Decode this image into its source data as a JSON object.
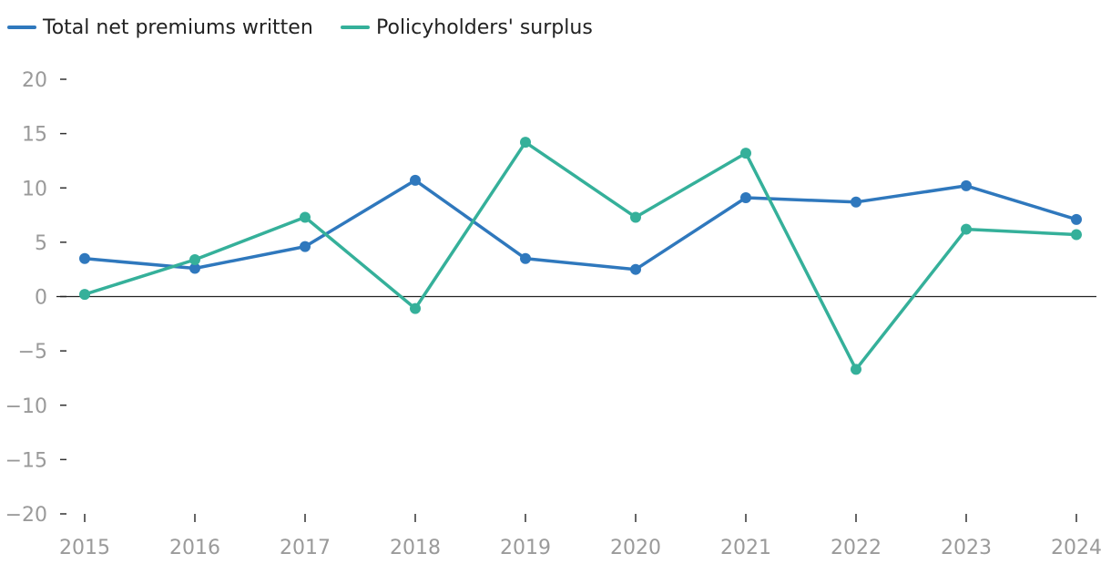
{
  "chart_data": {
    "type": "line",
    "categories": [
      "2015",
      "2016",
      "2017",
      "2018",
      "2019",
      "2020",
      "2021",
      "2022",
      "2023",
      "2024"
    ],
    "series": [
      {
        "name": "Total net premiums written",
        "color": "#2f78bd",
        "values": [
          3.5,
          2.6,
          4.6,
          10.7,
          3.5,
          2.5,
          9.1,
          8.7,
          10.2,
          7.1
        ]
      },
      {
        "name": "Policyholders' surplus",
        "color": "#35b09a",
        "values": [
          0.2,
          3.4,
          7.3,
          -1.1,
          14.2,
          7.3,
          13.2,
          -6.7,
          6.2,
          5.7
        ]
      }
    ],
    "ylim": [
      -20,
      20
    ],
    "yticks": [
      20,
      15,
      10,
      5,
      0,
      -5,
      -10,
      -15,
      -20
    ],
    "ytick_labels": [
      "20",
      "15",
      "10",
      "5",
      "0",
      "−5",
      "−10",
      "−15",
      "−20"
    ],
    "legend_position": "top-left",
    "zero_line": true,
    "grid": false
  }
}
